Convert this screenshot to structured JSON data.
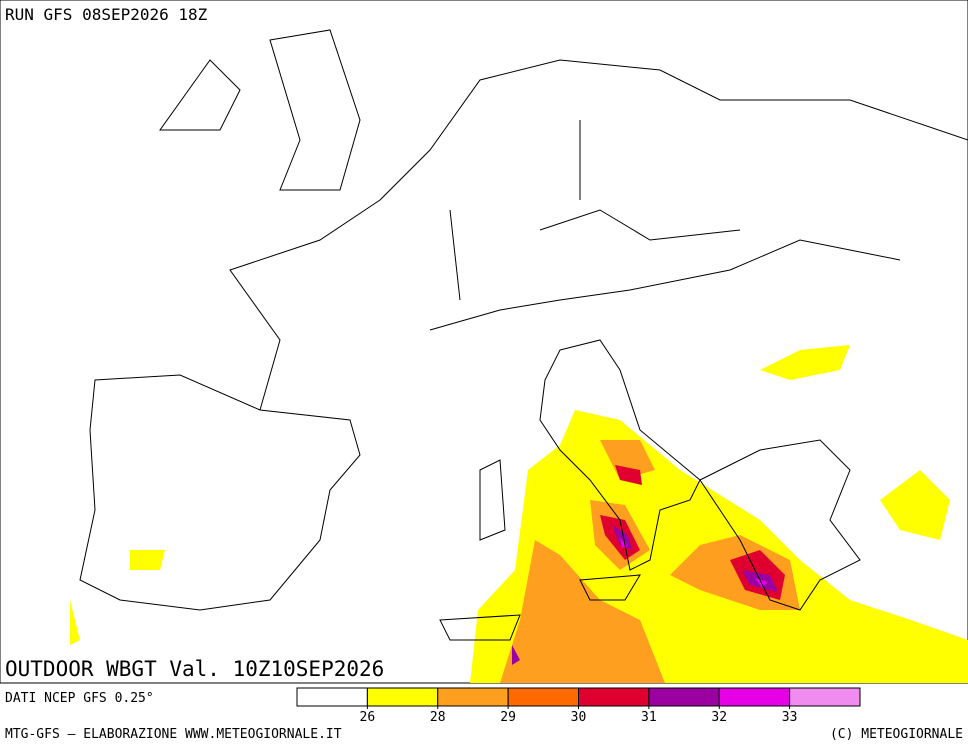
{
  "header": {
    "run": "RUN GFS 08SEP2026 18Z"
  },
  "map": {
    "title": "OUTDOOR WBGT Val. 10Z10SEP2026"
  },
  "legend": {
    "source": "DATI NCEP GFS 0.25°",
    "colors": [
      "#ffffff",
      "#ffff00",
      "#ff9f1f",
      "#ff6a00",
      "#e00030",
      "#9b00a0",
      "#e600e6",
      "#f08cf0"
    ],
    "ticks": [
      26,
      28,
      29,
      30,
      31,
      32,
      33
    ]
  },
  "footer": {
    "left": "MTG-GFS — ELABORAZIONE WWW.METEOGIORNALE.IT",
    "right": "(C) METEOGIORNALE"
  }
}
